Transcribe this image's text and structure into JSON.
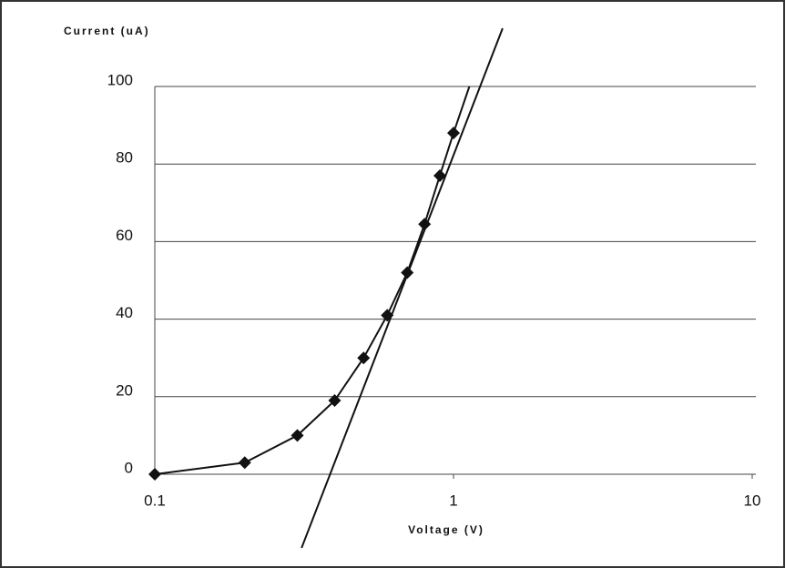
{
  "chart_data": {
    "type": "scatter-line",
    "y_label": "Current (uA)",
    "x_label": "Voltage (V)",
    "xscale": "log",
    "xlim": [
      0.1,
      10
    ],
    "xticks": [
      0.1,
      1,
      10
    ],
    "ylim": [
      0,
      100
    ],
    "yticks": [
      0,
      20,
      40,
      60,
      80,
      100
    ],
    "grid": true,
    "series": [
      {
        "x": [
          0.1,
          0.2,
          0.3,
          0.4,
          0.5,
          0.6,
          0.7,
          0.8,
          0.9,
          1.0
        ],
        "values": [
          0,
          3,
          10,
          19,
          30,
          41,
          52,
          64.5,
          77,
          88
        ],
        "color": "#111111",
        "marker": "diamond",
        "line": false
      },
      {
        "x": [
          0.1,
          0.2,
          0.3,
          0.4,
          0.5,
          0.6,
          0.7,
          0.8,
          0.9,
          1.0,
          1.13
        ],
        "values": [
          0,
          3,
          10,
          19,
          30,
          41,
          52,
          64.5,
          77,
          88,
          100
        ],
        "color": "#111111",
        "marker": "none",
        "line": true
      },
      {
        "x": [
          0.31,
          1.46
        ],
        "values": [
          -19,
          115
        ],
        "color": "#111111",
        "marker": "none",
        "line": true
      }
    ]
  }
}
